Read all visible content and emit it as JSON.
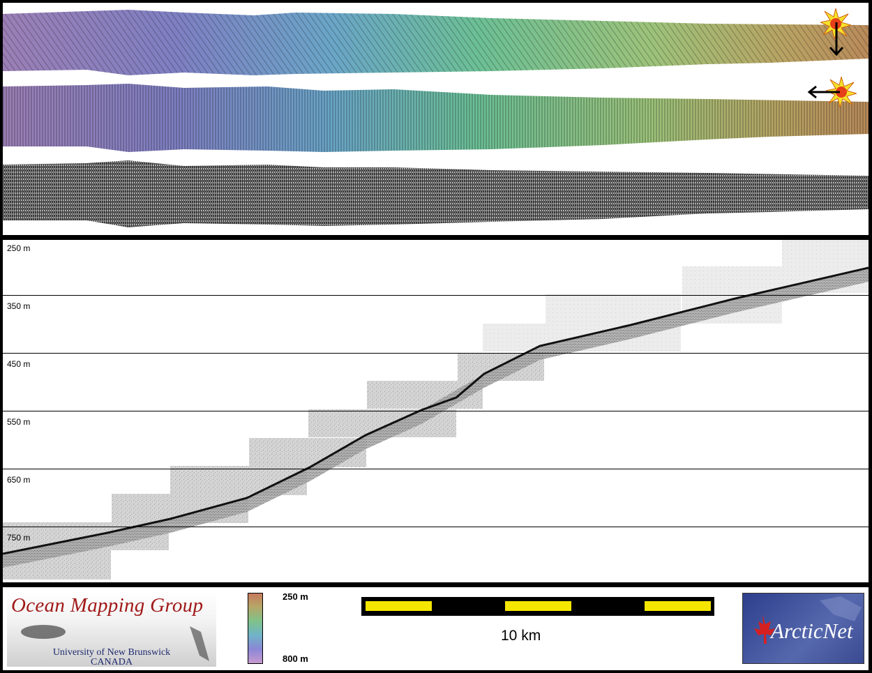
{
  "swath": {
    "top_sun_arrow": "down",
    "middle_sun_arrow": "left",
    "strips": [
      {
        "name": "colour-shaded-bathymetry-north-illumination"
      },
      {
        "name": "colour-shaded-bathymetry-east-illumination"
      },
      {
        "name": "backscatter-mosaic"
      }
    ]
  },
  "profile": {
    "depth_labels": [
      "250 m",
      "350 m",
      "450 m",
      "550 m",
      "650 m",
      "750 m"
    ]
  },
  "footer": {
    "omg_title": "Ocean Mapping Group",
    "omg_university": "University of New Brunswick",
    "omg_country": "CANADA",
    "colorbar_top": "250 m",
    "colorbar_bottom": "800 m",
    "scale_label": "10 km",
    "arcticnet": "ArcticNet"
  },
  "colors": {
    "frame": "#000000",
    "scalebar_yellow": "#f5e600",
    "omg_red": "#a01818",
    "omg_blue": "#1d2a6e",
    "arcticnet_blue": "#3a4a92",
    "maple_red": "#d62020"
  }
}
